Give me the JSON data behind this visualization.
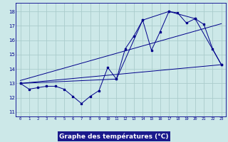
{
  "xlabel": "Graphe des températures (°C)",
  "bg_color": "#cce8e8",
  "grid_color": "#aacccc",
  "line_color": "#00008b",
  "xlabel_bg": "#1a1a8c",
  "xlabel_fg": "#ffffff",
  "x_ticks": [
    0,
    1,
    2,
    3,
    4,
    5,
    6,
    7,
    8,
    9,
    10,
    11,
    12,
    13,
    14,
    15,
    16,
    17,
    18,
    19,
    20,
    21,
    22,
    23
  ],
  "y_ticks": [
    11,
    12,
    13,
    14,
    15,
    16,
    17,
    18
  ],
  "ylim": [
    10.7,
    18.6
  ],
  "xlim": [
    -0.5,
    23.5
  ],
  "series1": {
    "x": [
      0,
      1,
      2,
      3,
      4,
      5,
      6,
      7,
      8,
      9,
      10,
      11,
      12,
      13,
      14,
      15,
      16,
      17,
      18,
      19,
      20,
      21,
      22,
      23
    ],
    "y": [
      13.0,
      12.6,
      12.7,
      12.8,
      12.8,
      12.6,
      12.1,
      11.6,
      12.1,
      12.5,
      14.1,
      13.3,
      15.4,
      16.3,
      17.4,
      15.3,
      16.6,
      18.0,
      17.9,
      17.2,
      17.5,
      17.1,
      15.4,
      14.3
    ]
  },
  "series2": {
    "x": [
      0,
      11,
      14,
      17,
      20,
      23
    ],
    "y": [
      13.0,
      13.3,
      17.4,
      18.0,
      17.5,
      14.3
    ]
  },
  "series3": {
    "x": [
      0,
      23
    ],
    "y": [
      13.0,
      14.3
    ]
  },
  "series4": {
    "x": [
      0,
      23
    ],
    "y": [
      13.2,
      17.15
    ]
  }
}
